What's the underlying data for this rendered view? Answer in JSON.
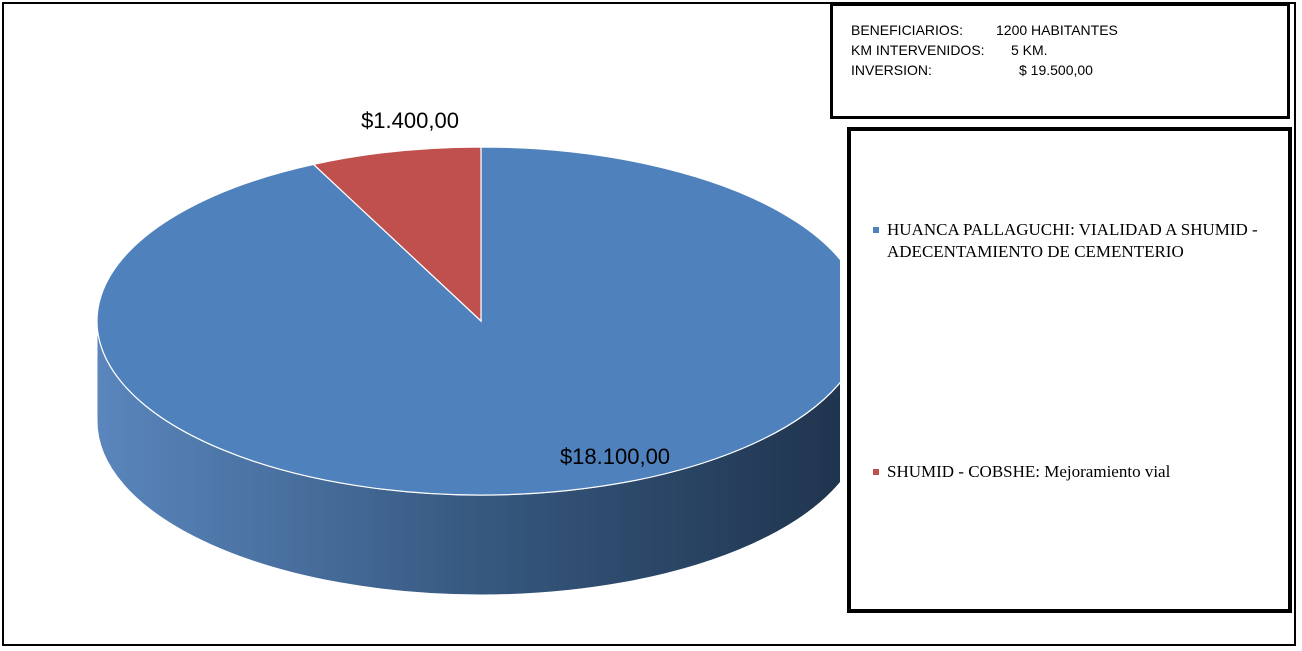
{
  "chart_data": {
    "type": "pie3d",
    "categories": [
      "HUANCA PALLAGUCHI:   VIALIDAD A SHUMID - ADECENTAMIENTO DE CEMENTERIO",
      "SHUMID - COBSHE: Mejoramiento vial"
    ],
    "values": [
      18100,
      1400
    ],
    "value_labels": [
      "$18.100,00",
      "$1.400,00"
    ],
    "colors": [
      "#4f81bd",
      "#c0504d"
    ]
  },
  "info_box": {
    "rows": [
      [
        "BENEFICIARIOS:",
        "1200 HABITANTES"
      ],
      [
        "KM INTERVENIDOS:",
        "5 KM."
      ],
      [
        "INVERSION:",
        "$ 19.500,00"
      ]
    ]
  }
}
